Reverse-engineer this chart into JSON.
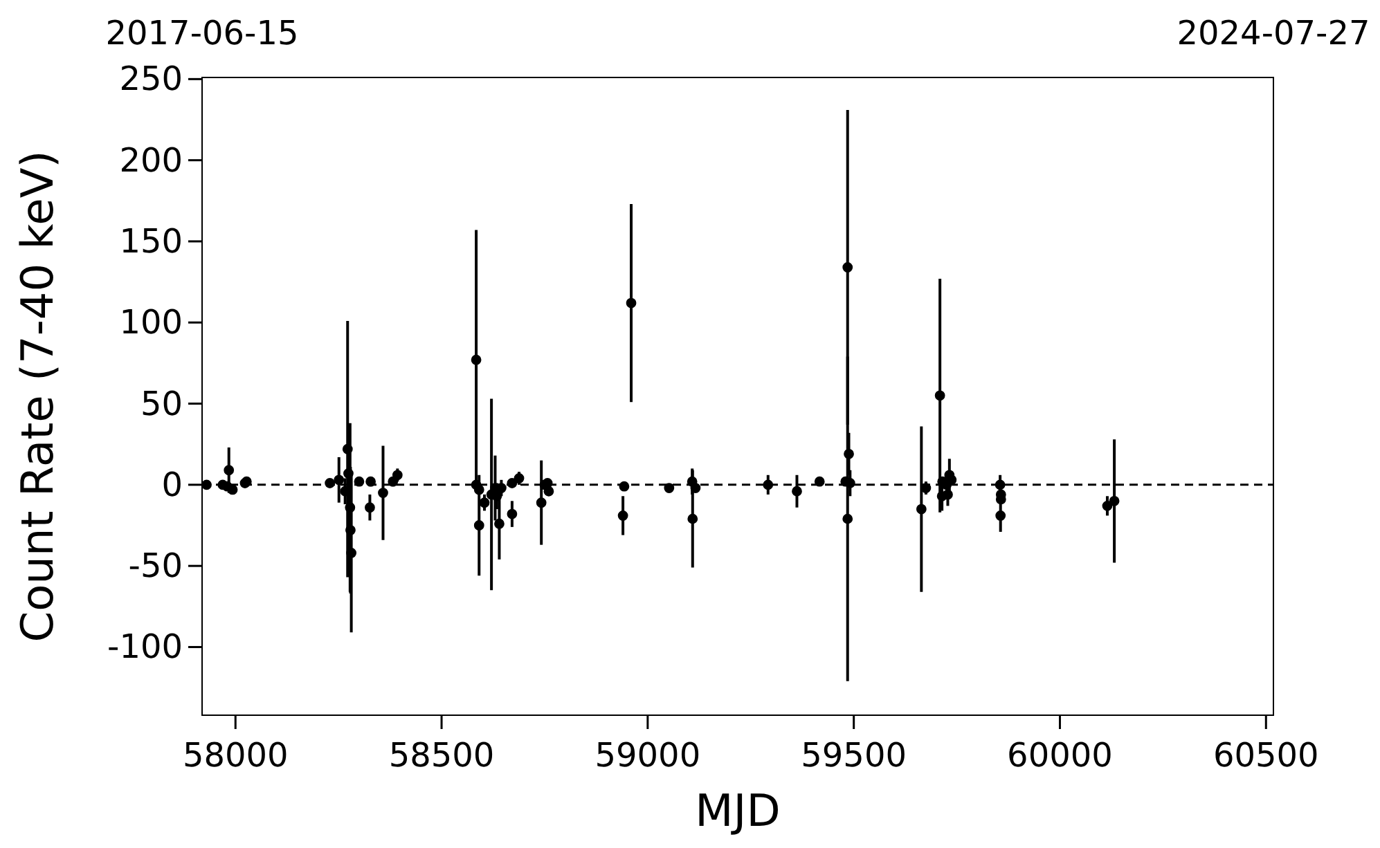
{
  "chart_data": {
    "type": "scatter",
    "xlabel": "MJD",
    "ylabel": "Count Rate (7-40 keV)",
    "xlim": [
      57919,
      60518
    ],
    "xticks": [
      58000,
      58500,
      59000,
      59500,
      60000,
      60500
    ],
    "x2lim": [
      "2017-06-15",
      "2024-07-27"
    ],
    "x2ticks": [
      "2017-06-15",
      "2024-07-27"
    ],
    "ylim": [
      -142,
      251
    ],
    "yticks": [
      -100,
      -50,
      0,
      50,
      100,
      150,
      200,
      250
    ],
    "grid": false,
    "marker": "circle",
    "ref_lines": [
      {
        "axis": "y",
        "value": 0,
        "color": "#000000",
        "line_style": "dashed"
      }
    ],
    "series": [
      {
        "color": "#000000",
        "x": [
          57930,
          57969,
          57980,
          57984,
          57993,
          58023,
          58027,
          58229,
          58251,
          58266,
          58272,
          58274,
          58278,
          58279,
          58281,
          58300,
          58326,
          58328,
          58358,
          58382,
          58393,
          58584,
          58584,
          58591,
          58591,
          58604,
          58621,
          58630,
          58634,
          58640,
          58645,
          58671,
          58671,
          58688,
          58742,
          58750,
          58757,
          58760,
          58940,
          58943,
          58960,
          59052,
          59108,
          59109,
          59116,
          59292,
          59362,
          59417,
          59480,
          59485,
          59485,
          59488,
          59491,
          59664,
          59675,
          59709,
          59714,
          59715,
          59725,
          59728,
          59732,
          59737,
          59855,
          59856,
          59857,
          59857,
          60115,
          60132
        ],
        "values": [
          0,
          0,
          -1,
          9,
          -3,
          1,
          2,
          1,
          3,
          -4,
          22,
          7,
          -14,
          -28,
          -42,
          2,
          -14,
          2,
          -5,
          2,
          6,
          77,
          0,
          -25,
          -3,
          -11,
          -6,
          -2,
          -7,
          -24,
          -2,
          -18,
          1,
          4,
          -11,
          0,
          1,
          -4,
          -19,
          -1,
          112,
          -2,
          2,
          -21,
          -2,
          0,
          -4,
          2,
          2,
          134,
          -21,
          19,
          1,
          -15,
          -2,
          55,
          -7,
          2,
          0,
          -6,
          6,
          3,
          0,
          -19,
          -6,
          -9,
          -13,
          -10
        ],
        "errors": [
          null,
          null,
          null,
          14,
          null,
          null,
          null,
          null,
          14,
          8,
          79,
          10,
          52,
          39,
          49,
          2,
          8,
          3,
          29,
          3,
          4,
          80,
          3,
          31,
          null,
          5,
          59,
          20,
          8,
          22,
          5,
          8,
          null,
          4,
          26,
          null,
          null,
          null,
          12,
          null,
          61,
          2,
          8,
          30,
          null,
          6,
          10,
          2,
          null,
          97,
          100,
          13,
          8,
          51,
          4,
          72,
          9,
          null,
          null,
          7,
          10,
          null,
          6,
          10,
          null,
          null,
          6,
          38
        ]
      }
    ]
  }
}
